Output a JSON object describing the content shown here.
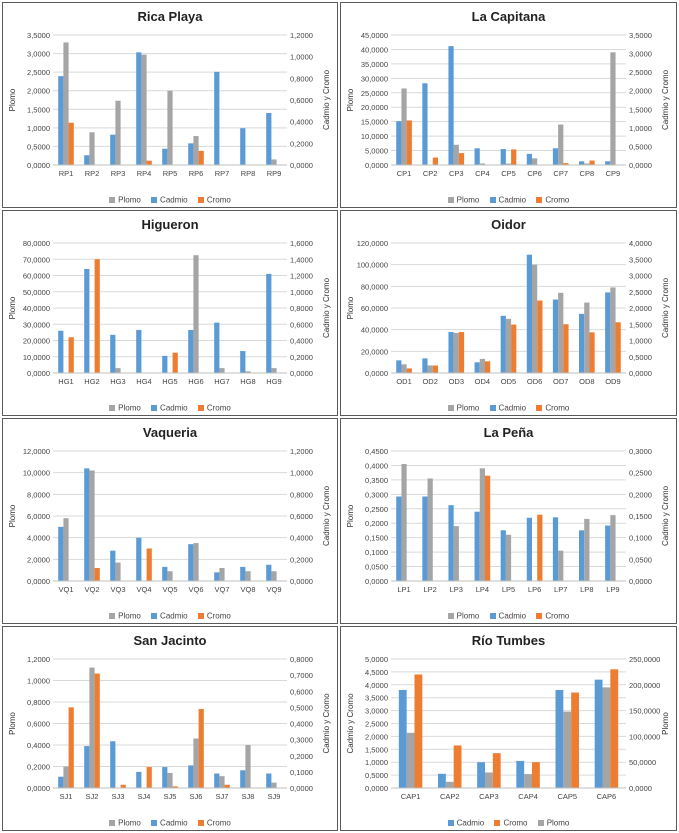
{
  "colors": {
    "plomo": "#a5a5a5",
    "cadmio": "#5b9bd5",
    "cromo": "#ed7d31"
  },
  "chart_data": [
    {
      "type": "bar",
      "title": "Rica Playa",
      "categories": [
        "RP1",
        "RP2",
        "RP3",
        "RP4",
        "RP5",
        "RP6",
        "RP7",
        "RP8",
        "RP9"
      ],
      "ylabel": "Plomo",
      "y2label": "Cadmio y Cromo",
      "ylim": [
        0,
        3.5
      ],
      "y2lim": [
        0,
        1.2
      ],
      "yticks": [
        "0,0000",
        "0,5000",
        "1,0000",
        "1,5000",
        "2,0000",
        "2,5000",
        "3,0000",
        "3,5000"
      ],
      "y2ticks": [
        "0,0000",
        "0,2000",
        "0,4000",
        "0,6000",
        "0,8000",
        "1,0000",
        "1,2000"
      ],
      "series": [
        {
          "name": "Plomo",
          "key": "plomo",
          "axis": "left",
          "values": [
            3.3,
            0.88,
            1.73,
            2.97,
            2.0,
            0.78,
            0,
            0,
            0.15
          ]
        },
        {
          "name": "Cadmio",
          "key": "cadmio",
          "axis": "right",
          "values": [
            0.82,
            0.09,
            0.28,
            1.04,
            0.15,
            0.2,
            0.86,
            0.34,
            0.48
          ]
        },
        {
          "name": "Cromo",
          "key": "cromo",
          "axis": "right",
          "values": [
            0.39,
            0,
            0,
            0.04,
            0,
            0.13,
            0,
            0,
            0
          ]
        }
      ],
      "order": [
        "cadmio",
        "plomo",
        "cromo"
      ],
      "legend": [
        "Plomo",
        "Cadmio",
        "Cromo"
      ],
      "legend_keys": [
        "plomo",
        "cadmio",
        "cromo"
      ]
    },
    {
      "type": "bar",
      "title": "La Capitana",
      "categories": [
        "CP1",
        "CP2",
        "CP3",
        "CP4",
        "CP5",
        "CP6",
        "CP7",
        "CP8",
        "CP9"
      ],
      "ylabel": "Plomo",
      "y2label": "Cadmio y Cromo",
      "ylim": [
        0,
        45
      ],
      "y2lim": [
        0,
        3.5
      ],
      "yticks": [
        "0,0000",
        "5,0000",
        "10,0000",
        "15,0000",
        "20,0000",
        "25,0000",
        "30,0000",
        "35,0000",
        "40,0000",
        "45,0000"
      ],
      "y2ticks": [
        "0,0000",
        "0,5000",
        "1,0000",
        "1,5000",
        "2,0000",
        "2,5000",
        "3,0000",
        "3,5000"
      ],
      "series": [
        {
          "name": "Plomo",
          "key": "plomo",
          "axis": "left",
          "values": [
            26.5,
            0,
            7.0,
            0.5,
            0.5,
            2.3,
            14.0,
            0.5,
            39.0
          ]
        },
        {
          "name": "Cadmio",
          "key": "cadmio",
          "axis": "right",
          "values": [
            1.18,
            2.2,
            3.2,
            0.45,
            0.43,
            0.3,
            0.45,
            0.1,
            0.1
          ]
        },
        {
          "name": "Cromo",
          "key": "cromo",
          "axis": "right",
          "values": [
            1.2,
            0.2,
            0.32,
            0,
            0.42,
            0,
            0.05,
            0.12,
            0
          ]
        }
      ],
      "order": [
        "cadmio",
        "plomo",
        "cromo"
      ],
      "legend": [
        "Plomo",
        "Cadmio",
        "Cromo"
      ],
      "legend_keys": [
        "plomo",
        "cadmio",
        "cromo"
      ]
    },
    {
      "type": "bar",
      "title": "Higueron",
      "categories": [
        "HG1",
        "HG2",
        "HG3",
        "HG4",
        "HG5",
        "HG6",
        "HG7",
        "HG8",
        "HG9"
      ],
      "ylabel": "Plomo",
      "y2label": "Cadmio y Cromo",
      "ylim": [
        0,
        80
      ],
      "y2lim": [
        0,
        1.6
      ],
      "yticks": [
        "0,0000",
        "10,0000",
        "20,0000",
        "30,0000",
        "40,0000",
        "50,0000",
        "60,0000",
        "70,0000",
        "80,0000"
      ],
      "y2ticks": [
        "0,0000",
        "0,2000",
        "0,4000",
        "0,6000",
        "0,8000",
        "1,0000",
        "1,2000",
        "1,4000",
        "1,6000"
      ],
      "series": [
        {
          "name": "Plomo",
          "key": "plomo",
          "axis": "left",
          "values": [
            0,
            0,
            3.0,
            0,
            0,
            72.5,
            3.0,
            1.0,
            3.0
          ]
        },
        {
          "name": "Cadmio",
          "key": "cadmio",
          "axis": "right",
          "values": [
            0.52,
            1.28,
            0.47,
            0.53,
            0.21,
            0.53,
            0.62,
            0.27,
            1.22
          ]
        },
        {
          "name": "Cromo",
          "key": "cromo",
          "axis": "right",
          "values": [
            0.44,
            1.4,
            0,
            0,
            0.25,
            0,
            0,
            0,
            0
          ]
        }
      ],
      "order": [
        "cadmio",
        "plomo",
        "cromo"
      ],
      "legend": [
        "Plomo",
        "Cadmio",
        "Cromo"
      ],
      "legend_keys": [
        "plomo",
        "cadmio",
        "cromo"
      ]
    },
    {
      "type": "bar",
      "title": "Oidor",
      "categories": [
        "OD1",
        "OD2",
        "OD3",
        "OD4",
        "OD5",
        "OD6",
        "OD7",
        "OD8",
        "OD9"
      ],
      "ylabel": "Plomo",
      "y2label": "Cadmio y Cromo",
      "ylim": [
        0,
        120
      ],
      "y2lim": [
        0,
        4.0
      ],
      "yticks": [
        "0,0000",
        "20,0000",
        "40,0000",
        "60,0000",
        "80,0000",
        "100,0000",
        "120,0000"
      ],
      "y2ticks": [
        "0,0000",
        "0,5000",
        "1,0000",
        "1,5000",
        "2,0000",
        "2,5000",
        "3,0000",
        "3,5000",
        "4,0000"
      ],
      "series": [
        {
          "name": "Plomo",
          "key": "plomo",
          "axis": "left",
          "values": [
            8.0,
            7.0,
            37.0,
            13.0,
            50.0,
            100.0,
            74.0,
            65.0,
            79.0
          ]
        },
        {
          "name": "Cadmio",
          "key": "cadmio",
          "axis": "right",
          "values": [
            0.39,
            0.45,
            1.26,
            0.33,
            1.76,
            3.64,
            2.26,
            1.82,
            2.48
          ]
        },
        {
          "name": "Cromo",
          "key": "cromo",
          "axis": "right",
          "values": [
            0.14,
            0.23,
            1.26,
            0.36,
            1.49,
            2.23,
            1.5,
            1.25,
            1.56
          ]
        }
      ],
      "order": [
        "cadmio",
        "plomo",
        "cromo"
      ],
      "legend": [
        "Plomo",
        "Cadmio",
        "Cromo"
      ],
      "legend_keys": [
        "plomo",
        "cadmio",
        "cromo"
      ]
    },
    {
      "type": "bar",
      "title": "Vaqueria",
      "categories": [
        "VQ1",
        "VQ2",
        "VQ3",
        "VQ4",
        "VQ5",
        "VQ6",
        "VQ7",
        "VQ8",
        "VQ9"
      ],
      "ylabel": "Plomo",
      "y2label": "Cadmio y Cromo",
      "ylim": [
        0,
        12
      ],
      "y2lim": [
        0,
        1.2
      ],
      "yticks": [
        "0,0000",
        "2,0000",
        "4,0000",
        "6,0000",
        "8,0000",
        "10,0000",
        "12,0000"
      ],
      "y2ticks": [
        "0,0000",
        "0,2000",
        "0,4000",
        "0,6000",
        "0,8000",
        "1,0000",
        "1,2000"
      ],
      "series": [
        {
          "name": "Plomo",
          "key": "plomo",
          "axis": "left",
          "values": [
            5.8,
            10.2,
            1.7,
            0,
            0.9,
            3.5,
            1.2,
            0.9,
            0.9
          ]
        },
        {
          "name": "Cadmio",
          "key": "cadmio",
          "axis": "right",
          "values": [
            0.5,
            1.04,
            0.28,
            0.4,
            0.13,
            0.34,
            0.08,
            0.13,
            0.15
          ]
        },
        {
          "name": "Cromo",
          "key": "cromo",
          "axis": "right",
          "values": [
            0,
            0.12,
            0,
            0.3,
            0,
            0,
            0,
            0,
            0
          ]
        }
      ],
      "order": [
        "cadmio",
        "plomo",
        "cromo"
      ],
      "legend": [
        "Plomo",
        "Cadmio",
        "Cromo"
      ],
      "legend_keys": [
        "plomo",
        "cadmio",
        "cromo"
      ]
    },
    {
      "type": "bar",
      "title": "La Peña",
      "categories": [
        "LP1",
        "LP2",
        "LP3",
        "LP4",
        "LP5",
        "LP6",
        "LP7",
        "LP8",
        "LP9"
      ],
      "ylabel": "Plomo",
      "y2label": "Cadmio y Cromo",
      "ylim": [
        0,
        0.45
      ],
      "y2lim": [
        0,
        0.3
      ],
      "yticks": [
        "0,0000",
        "0,0500",
        "0,1000",
        "0,1500",
        "0,2000",
        "0,2500",
        "0,3000",
        "0,3500",
        "0,4000",
        "0,4500"
      ],
      "y2ticks": [
        "0,0000",
        "0,0500",
        "0,1000",
        "0,1500",
        "0,2000",
        "0,2500",
        "0,3000"
      ],
      "series": [
        {
          "name": "Plomo",
          "key": "plomo",
          "axis": "left",
          "values": [
            0.405,
            0.355,
            0.19,
            0.39,
            0.16,
            0,
            0.105,
            0.215,
            0.228
          ]
        },
        {
          "name": "Cadmio",
          "key": "cadmio",
          "axis": "right",
          "values": [
            0.195,
            0.195,
            0.175,
            0.16,
            0.117,
            0.146,
            0.147,
            0.117,
            0.128
          ]
        },
        {
          "name": "Cromo",
          "key": "cromo",
          "axis": "right",
          "values": [
            0,
            0,
            0,
            0.243,
            0,
            0.153,
            0,
            0,
            0
          ]
        }
      ],
      "order": [
        "cadmio",
        "plomo",
        "cromo"
      ],
      "legend": [
        "Plomo",
        "Cadmio",
        "Cromo"
      ],
      "legend_keys": [
        "plomo",
        "cadmio",
        "cromo"
      ]
    },
    {
      "type": "bar",
      "title": "San Jacinto",
      "categories": [
        "SJ1",
        "SJ2",
        "SJ3",
        "SJ4",
        "SJ5",
        "SJ6",
        "SJ7",
        "SJ8",
        "SJ9"
      ],
      "ylabel": "Plomo",
      "y2label": "Cadmio y Cromo",
      "ylim": [
        0,
        1.2
      ],
      "y2lim": [
        0,
        0.8
      ],
      "yticks": [
        "0,0000",
        "0,2000",
        "0,4000",
        "0,6000",
        "0,8000",
        "1,0000",
        "1,2000"
      ],
      "y2ticks": [
        "0,0000",
        "0,1000",
        "0,2000",
        "0,3000",
        "0,4000",
        "0,5000",
        "0,6000",
        "0,7000",
        "0,8000"
      ],
      "series": [
        {
          "name": "Plomo",
          "key": "plomo",
          "axis": "left",
          "values": [
            0.2,
            1.12,
            0,
            0,
            0.14,
            0.46,
            0.11,
            0.4,
            0.05
          ]
        },
        {
          "name": "Cadmio",
          "key": "cadmio",
          "axis": "right",
          "values": [
            0.07,
            0.26,
            0.29,
            0.1,
            0.13,
            0.14,
            0.09,
            0.11,
            0.09
          ]
        },
        {
          "name": "Cromo",
          "key": "cromo",
          "axis": "right",
          "values": [
            0.5,
            0.71,
            0.02,
            0.13,
            0.01,
            0.49,
            0.02,
            0,
            0
          ]
        }
      ],
      "order": [
        "cadmio",
        "plomo",
        "cromo"
      ],
      "legend": [
        "Plomo",
        "Cadmio",
        "Cromo"
      ],
      "legend_keys": [
        "plomo",
        "cadmio",
        "cromo"
      ]
    },
    {
      "type": "bar",
      "title": "Río Tumbes",
      "categories": [
        "CAP1",
        "CAP2",
        "CAP3",
        "CAP4",
        "CAP5",
        "CAP6"
      ],
      "ylabel": "Cadmio y Cromo",
      "y2label": "Plomo",
      "ylim": [
        0,
        5.0
      ],
      "y2lim": [
        0,
        250
      ],
      "yticks": [
        "0,0000",
        "0,5000",
        "1,0000",
        "1,5000",
        "2,0000",
        "2,5000",
        "3,0000",
        "3,5000",
        "4,0000",
        "4,5000",
        "5,0000"
      ],
      "y2ticks": [
        "0,0000",
        "50,0000",
        "100,0000",
        "150,0000",
        "200,0000",
        "250,0000"
      ],
      "series": [
        {
          "name": "Cadmio",
          "key": "cadmio",
          "axis": "left",
          "values": [
            3.8,
            0.55,
            1.0,
            1.05,
            3.8,
            4.2
          ]
        },
        {
          "name": "Cromo",
          "key": "cromo",
          "axis": "left",
          "values": [
            4.4,
            1.65,
            1.35,
            1.0,
            3.7,
            4.6
          ]
        },
        {
          "name": "Plomo",
          "key": "plomo",
          "axis": "right",
          "values": [
            107,
            12,
            30,
            27,
            148,
            195
          ]
        }
      ],
      "order": [
        "cadmio",
        "plomo",
        "cromo"
      ],
      "legend": [
        "Cadmio",
        "Cromo",
        "Plomo"
      ],
      "legend_keys": [
        "cadmio",
        "cromo",
        "plomo"
      ]
    }
  ]
}
